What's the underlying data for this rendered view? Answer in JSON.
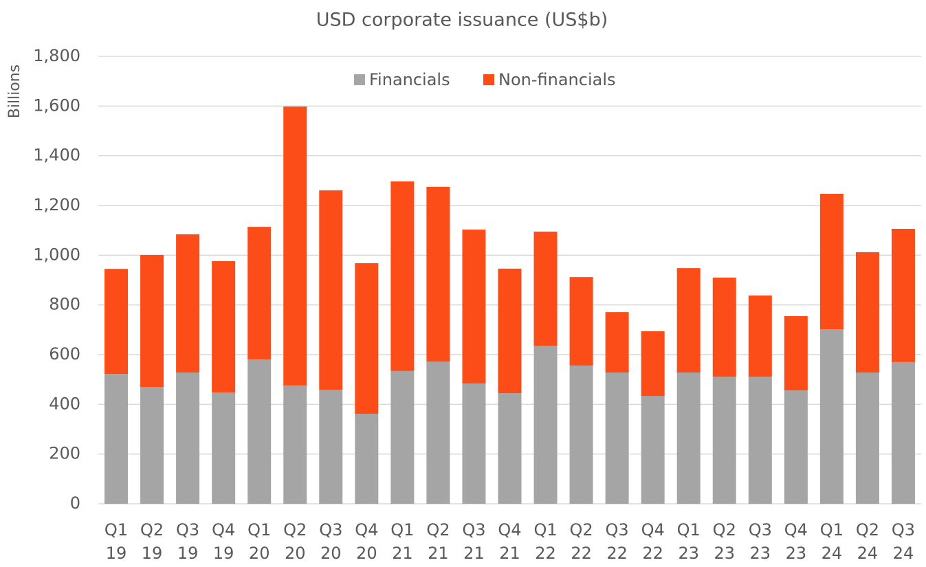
{
  "chart_data": {
    "type": "stacked_bar",
    "title": "USD corporate issuance (US$b)",
    "y_label": "Billions",
    "categories": [
      "Q1 19",
      "Q2 19",
      "Q3 19",
      "Q4 19",
      "Q1 20",
      "Q2 20",
      "Q3 20",
      "Q4 20",
      "Q1 21",
      "Q2 21",
      "Q3 21",
      "Q4 21",
      "Q1 22",
      "Q2 22",
      "Q3 22",
      "Q4 22",
      "Q1 23",
      "Q2 23",
      "Q3 23",
      "Q4 23",
      "Q1 24",
      "Q2 24",
      "Q3 24"
    ],
    "series": [
      {
        "name": "Financials",
        "color": "#a5a5a5",
        "values": [
          522,
          470,
          528,
          448,
          581,
          476,
          459,
          362,
          534,
          572,
          484,
          445,
          636,
          556,
          528,
          434,
          528,
          511,
          511,
          456,
          702,
          528,
          570
        ]
      },
      {
        "name": "Non-financials",
        "color": "#fc4c17",
        "values": [
          423,
          531,
          556,
          528,
          533,
          1122,
          802,
          606,
          763,
          703,
          619,
          501,
          459,
          356,
          243,
          260,
          420,
          399,
          327,
          299,
          545,
          484,
          536
        ]
      }
    ],
    "ylim": [
      0,
      1800
    ],
    "yticks": [
      0,
      200,
      400,
      600,
      800,
      {
        "value": 1000,
        "label": "1,000"
      },
      {
        "value": 1200,
        "label": "1,200"
      },
      {
        "value": 1400,
        "label": "1,400"
      },
      {
        "value": 1600,
        "label": "1,600"
      },
      {
        "value": 1800,
        "label": "1,800"
      }
    ],
    "grid": true,
    "legend": "top"
  }
}
